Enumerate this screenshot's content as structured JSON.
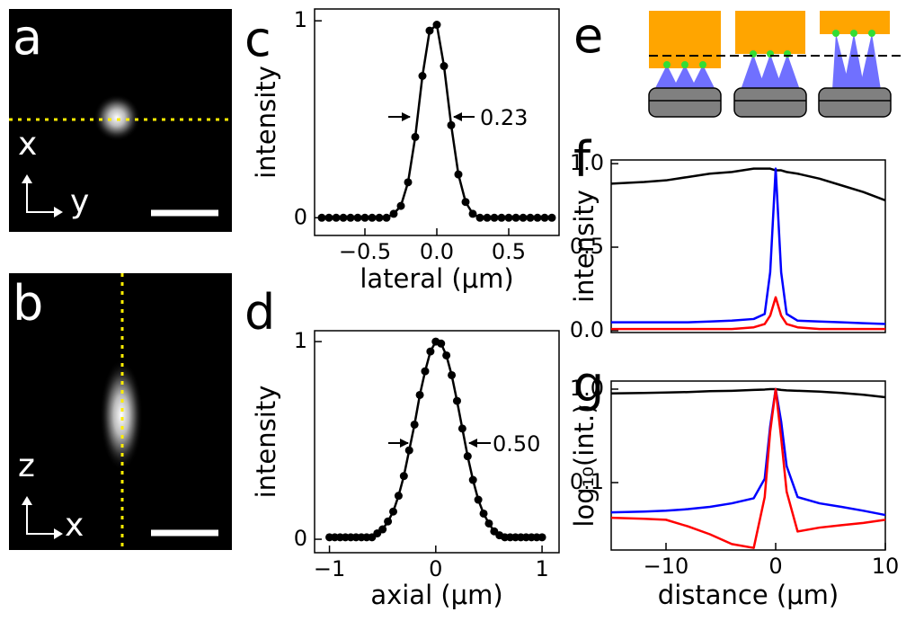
{
  "chart_data": [
    {
      "type": "image",
      "label": "a",
      "axis_labels": [
        "x",
        "y"
      ]
    },
    {
      "type": "image",
      "label": "b",
      "axis_labels": [
        "z",
        "x"
      ]
    },
    {
      "type": "line",
      "label": "c",
      "xlabel": "lateral (μm)",
      "ylabel": "intensity",
      "annotation": "0.23",
      "xlim": [
        -0.85,
        0.85
      ],
      "ylim": [
        -0.09,
        1.06
      ],
      "xticks": [
        {
          "value": -0.5,
          "label": "−0.5"
        },
        {
          "value": 0,
          "label": "0.0"
        },
        {
          "value": 0.5,
          "label": "0.5"
        }
      ],
      "yticks": [
        0,
        1
      ],
      "x": [
        -0.8,
        -0.75,
        -0.7,
        -0.65,
        -0.6,
        -0.55,
        -0.5,
        -0.45,
        -0.4,
        -0.35,
        -0.3,
        -0.25,
        -0.2,
        -0.15,
        -0.1,
        -0.05,
        0,
        0.05,
        0.1,
        0.15,
        0.2,
        0.25,
        0.3,
        0.35,
        0.4,
        0.45,
        0.5,
        0.55,
        0.6,
        0.65,
        0.7,
        0.75,
        0.8
      ],
      "series": [
        {
          "color": "#000000",
          "markers": true,
          "values": [
            0,
            0,
            0,
            0,
            0,
            0,
            0,
            0,
            0,
            0,
            0.02,
            0.06,
            0.18,
            0.41,
            0.72,
            0.95,
            0.98,
            0.77,
            0.47,
            0.22,
            0.08,
            0.02,
            0,
            0,
            0,
            0,
            0,
            0,
            0,
            0,
            0,
            0,
            0
          ]
        }
      ]
    },
    {
      "type": "line",
      "label": "d",
      "xlabel": "axial (μm)",
      "ylabel": "intensity",
      "annotation": "0.50",
      "xlim": [
        -1.14,
        1.16
      ],
      "ylim": [
        -0.068,
        1.055
      ],
      "xticks": [
        {
          "value": -1,
          "label": "−1"
        },
        0,
        1
      ],
      "yticks": [
        0,
        1
      ],
      "x": [
        -1,
        -0.95,
        -0.9,
        -0.85,
        -0.8,
        -0.75,
        -0.7,
        -0.65,
        -0.6,
        -0.55,
        -0.5,
        -0.45,
        -0.4,
        -0.35,
        -0.3,
        -0.25,
        -0.2,
        -0.15,
        -0.1,
        -0.05,
        0,
        0.05,
        0.1,
        0.15,
        0.2,
        0.25,
        0.3,
        0.35,
        0.4,
        0.45,
        0.5,
        0.55,
        0.6,
        0.65,
        0.7,
        0.75,
        0.8,
        0.85,
        0.9,
        0.95,
        1
      ],
      "series": [
        {
          "color": "#000000",
          "markers": true,
          "values": [
            0.01,
            0.01,
            0.01,
            0.01,
            0.01,
            0.01,
            0.01,
            0.01,
            0.01,
            0.03,
            0.05,
            0.09,
            0.14,
            0.22,
            0.32,
            0.45,
            0.58,
            0.73,
            0.85,
            0.95,
            1.0,
            0.99,
            0.93,
            0.83,
            0.7,
            0.56,
            0.42,
            0.3,
            0.2,
            0.13,
            0.08,
            0.04,
            0.02,
            0.01,
            0.01,
            0.01,
            0.01,
            0.01,
            0.01,
            0.01,
            0.01
          ]
        }
      ]
    },
    {
      "type": "diagram",
      "label": "e"
    },
    {
      "type": "line",
      "label": "f",
      "ylabel": "intensity",
      "xlim": [
        -15,
        10
      ],
      "ylim": [
        -0.011,
        1.022
      ],
      "yticks": [
        {
          "value": 0,
          "label": "0.0"
        },
        0.5,
        {
          "value": 1,
          "label": "1.0"
        }
      ],
      "x": [
        -15,
        -12,
        -10,
        -8,
        -6,
        -4,
        -2,
        -1,
        -0.5,
        0,
        0.5,
        1,
        2,
        4,
        6,
        8,
        10
      ],
      "series": [
        {
          "color": "#000000",
          "values": [
            0.88,
            0.89,
            0.9,
            0.92,
            0.94,
            0.95,
            0.97,
            0.97,
            0.97,
            0.96,
            0.96,
            0.95,
            0.94,
            0.91,
            0.87,
            0.83,
            0.78
          ]
        },
        {
          "color": "#0000ff",
          "values": [
            0.05,
            0.05,
            0.05,
            0.05,
            0.055,
            0.06,
            0.07,
            0.1,
            0.35,
            0.97,
            0.35,
            0.1,
            0.06,
            0.055,
            0.05,
            0.045,
            0.04
          ]
        },
        {
          "color": "#ff0000",
          "values": [
            0.01,
            0.01,
            0.01,
            0.01,
            0.01,
            0.01,
            0.02,
            0.04,
            0.09,
            0.2,
            0.09,
            0.04,
            0.02,
            0.01,
            0.01,
            0.01,
            0.01
          ]
        }
      ]
    },
    {
      "type": "line",
      "label": "g",
      "xlabel": "distance (μm)",
      "ylabel": "log₁₀(int.)",
      "log_y": true,
      "xlim": [
        -15,
        10
      ],
      "ylim": [
        0.019,
        1.22
      ],
      "xticks": [
        {
          "value": -10,
          "label": "−10"
        },
        0,
        10
      ],
      "yticks": [
        0.1,
        {
          "value": 1,
          "label": "1.0"
        }
      ],
      "x": [
        -15,
        -12,
        -10,
        -8,
        -6,
        -4,
        -2,
        -1,
        -0.5,
        0,
        0.5,
        1,
        2,
        4,
        6,
        8,
        10
      ],
      "series": [
        {
          "color": "#000000",
          "values": [
            0.9,
            0.91,
            0.92,
            0.93,
            0.95,
            0.96,
            0.98,
            0.99,
            1.0,
            1.0,
            0.98,
            0.97,
            0.96,
            0.94,
            0.91,
            0.87,
            0.82
          ]
        },
        {
          "color": "#0000ff",
          "values": [
            0.048,
            0.049,
            0.05,
            0.052,
            0.055,
            0.06,
            0.068,
            0.11,
            0.4,
            1.0,
            0.45,
            0.15,
            0.07,
            0.06,
            0.055,
            0.05,
            0.045
          ]
        },
        {
          "color": "#ff0000",
          "values": [
            0.042,
            0.041,
            0.04,
            0.034,
            0.028,
            0.022,
            0.02,
            0.07,
            0.35,
            1.0,
            0.3,
            0.08,
            0.03,
            0.033,
            0.035,
            0.037,
            0.04
          ]
        }
      ]
    }
  ]
}
